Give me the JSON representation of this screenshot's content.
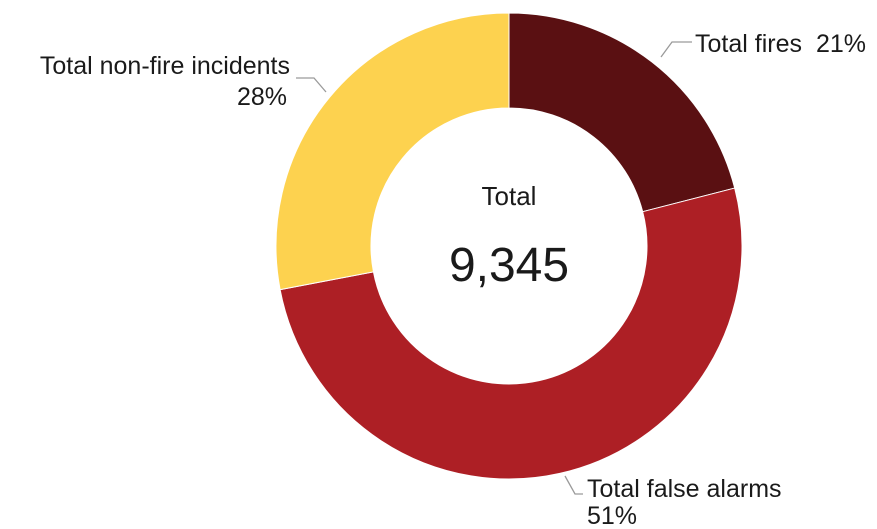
{
  "chart_data": {
    "type": "pie",
    "variant": "donut",
    "title": "",
    "center_label": "Total",
    "center_value": "9,345",
    "slices": [
      {
        "name": "Total fires",
        "value": 21,
        "value_label": "21%",
        "color": "#5a1012"
      },
      {
        "name": "Total false alarms",
        "value": 51,
        "value_label": "51%",
        "color": "#ad1f25"
      },
      {
        "name": "Total non-fire incidents",
        "value": 28,
        "value_label": "28%",
        "color": "#fdd24f"
      }
    ],
    "legend": "none"
  }
}
